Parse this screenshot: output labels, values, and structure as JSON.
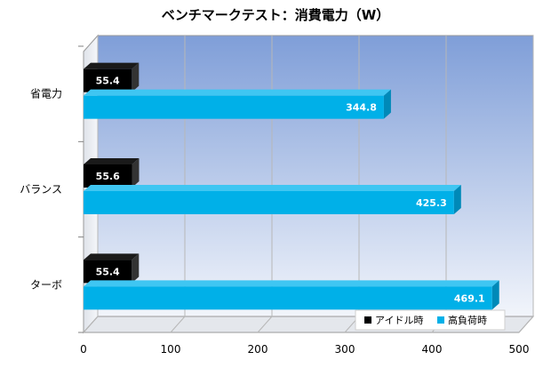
{
  "chart_data": {
    "type": "bar",
    "orientation": "horizontal",
    "title": "ベンチマークテスト：消費電力（W）",
    "categories": [
      "省電力",
      "バランス",
      "ターボ"
    ],
    "series": [
      {
        "name": "アイドル時",
        "values": [
          55.4,
          55.6,
          55.4
        ],
        "color": "#000000"
      },
      {
        "name": "高負荷時",
        "values": [
          344.8,
          425.3,
          469.1
        ],
        "color": "#00b0e8"
      }
    ],
    "xlim": [
      0,
      500
    ],
    "xticks": [
      "0",
      "100",
      "200",
      "300",
      "400",
      "500"
    ],
    "grid": true,
    "legend_position": "bottom-right",
    "background": "gradient-blue"
  }
}
